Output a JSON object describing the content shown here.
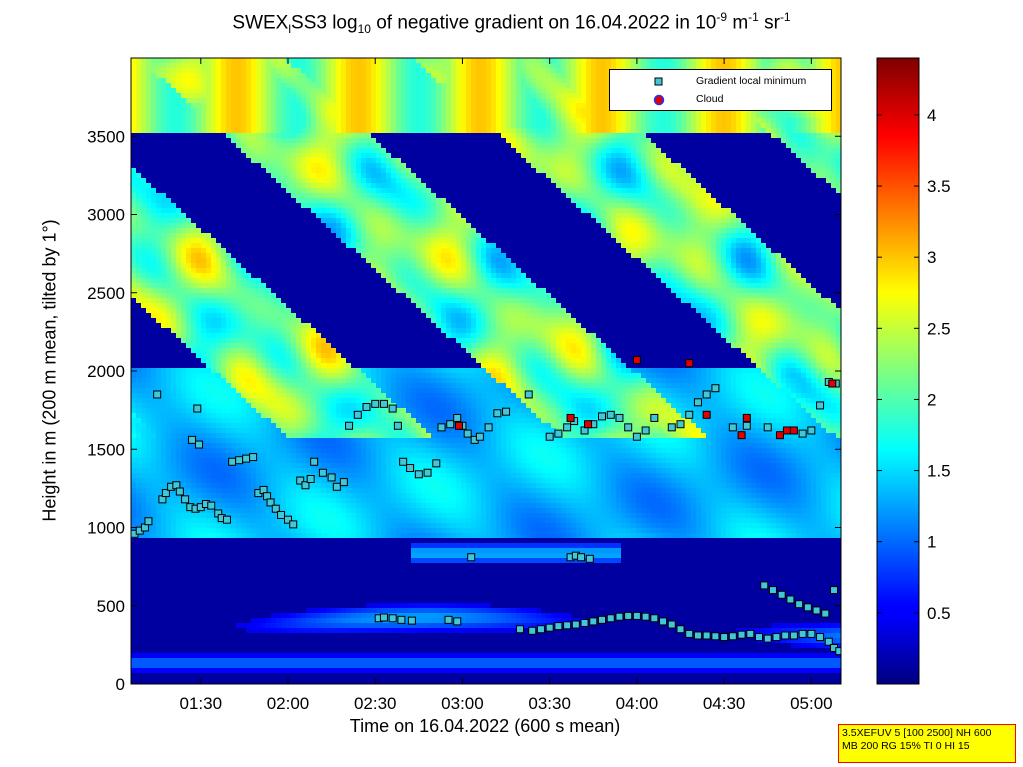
{
  "title": {
    "part1": "SWEX",
    "sub1": "l",
    "part2": "SS3 log",
    "sub2": "10",
    "part3": " of negative gradient on 16.04.2022 in 10",
    "sup1": "-9",
    "part4": " m",
    "sup2": "-1",
    "part5": " sr",
    "sup3": "-1"
  },
  "xlabel": "Time on 16.04.2022 (600 s mean)",
  "ylabel": "Height in m (200 m mean, tilted by 1°)",
  "legend": {
    "items": [
      "Gradient local minimum",
      "Cloud"
    ],
    "position": "top-right"
  },
  "info": {
    "line1": "3.5XEFUV 5 [100 2500] NH 600",
    "line2": "MB 200 RG 15% TI 0 HI 15"
  },
  "colors": {
    "minimum_marker_fill": "#40c8d8",
    "cloud_marker_fill": "#e00000",
    "info_background": "#ffff00",
    "info_border": "#ff0000"
  },
  "chart_data": {
    "type": "heatmap",
    "colormap": "jet",
    "xlim_hours": [
      1.1,
      5.17
    ],
    "ylim": [
      0,
      4000
    ],
    "x_ticks": [
      "01:30",
      "02:00",
      "02:30",
      "03:00",
      "03:30",
      "04:00",
      "04:30",
      "05:00"
    ],
    "y_ticks": [
      "0",
      "500",
      "1000",
      "1500",
      "2000",
      "2500",
      "3000",
      "3500"
    ],
    "colorbar_ticks": [
      "0.5",
      "1",
      "1.5",
      "2",
      "2.5",
      "3",
      "3.5",
      "4"
    ],
    "colorbar_range": [
      0,
      4.4
    ],
    "series": [
      {
        "name": "Gradient local minimum",
        "points": [
          [
            1.12,
            960
          ],
          [
            1.15,
            980
          ],
          [
            1.18,
            1000
          ],
          [
            1.2,
            1040
          ],
          [
            1.25,
            1850
          ],
          [
            1.28,
            1180
          ],
          [
            1.3,
            1220
          ],
          [
            1.33,
            1260
          ],
          [
            1.36,
            1270
          ],
          [
            1.38,
            1230
          ],
          [
            1.41,
            1180
          ],
          [
            1.44,
            1130
          ],
          [
            1.47,
            1120
          ],
          [
            1.5,
            1130
          ],
          [
            1.53,
            1150
          ],
          [
            1.56,
            1140
          ],
          [
            1.45,
            1560
          ],
          [
            1.49,
            1530
          ],
          [
            1.48,
            1760
          ],
          [
            1.6,
            1090
          ],
          [
            1.62,
            1060
          ],
          [
            1.65,
            1050
          ],
          [
            1.68,
            1420
          ],
          [
            1.72,
            1430
          ],
          [
            1.76,
            1440
          ],
          [
            1.8,
            1450
          ],
          [
            1.83,
            1220
          ],
          [
            1.86,
            1240
          ],
          [
            1.88,
            1200
          ],
          [
            1.9,
            1160
          ],
          [
            1.93,
            1120
          ],
          [
            1.96,
            1080
          ],
          [
            2.0,
            1050
          ],
          [
            2.03,
            1020
          ],
          [
            2.07,
            1300
          ],
          [
            2.1,
            1270
          ],
          [
            2.13,
            1310
          ],
          [
            2.15,
            1420
          ],
          [
            2.2,
            1350
          ],
          [
            2.25,
            1320
          ],
          [
            2.28,
            1260
          ],
          [
            2.32,
            1290
          ],
          [
            2.35,
            1650
          ],
          [
            2.4,
            1720
          ],
          [
            2.45,
            1770
          ],
          [
            2.5,
            1790
          ],
          [
            2.55,
            1790
          ],
          [
            2.6,
            1760
          ],
          [
            2.63,
            1650
          ],
          [
            2.66,
            1420
          ],
          [
            2.7,
            1380
          ],
          [
            2.75,
            1340
          ],
          [
            2.8,
            1350
          ],
          [
            2.85,
            1410
          ],
          [
            2.88,
            1640
          ],
          [
            2.93,
            1660
          ],
          [
            2.97,
            1700
          ],
          [
            3.0,
            1650
          ],
          [
            3.03,
            1600
          ],
          [
            3.07,
            1560
          ],
          [
            3.1,
            1580
          ],
          [
            3.15,
            1640
          ],
          [
            3.2,
            1730
          ],
          [
            3.25,
            1740
          ],
          [
            3.05,
            810
          ],
          [
            3.38,
            1850
          ],
          [
            3.5,
            1580
          ],
          [
            3.55,
            1600
          ],
          [
            3.6,
            1640
          ],
          [
            3.64,
            1680
          ],
          [
            3.7,
            1620
          ],
          [
            3.75,
            1660
          ],
          [
            3.8,
            1710
          ],
          [
            3.85,
            1720
          ],
          [
            3.9,
            1700
          ],
          [
            3.95,
            1640
          ],
          [
            4.0,
            1580
          ],
          [
            4.05,
            1620
          ],
          [
            4.1,
            1700
          ],
          [
            4.2,
            1640
          ],
          [
            4.25,
            1660
          ],
          [
            4.3,
            1720
          ],
          [
            4.35,
            1800
          ],
          [
            4.4,
            1850
          ],
          [
            4.45,
            1890
          ],
          [
            4.55,
            1640
          ],
          [
            4.63,
            1650
          ],
          [
            4.75,
            1640
          ],
          [
            4.95,
            1600
          ],
          [
            5.0,
            1620
          ],
          [
            5.05,
            1780
          ],
          [
            5.1,
            1930
          ],
          [
            5.14,
            1920
          ],
          [
            3.62,
            810
          ],
          [
            3.65,
            820
          ],
          [
            3.68,
            810
          ],
          [
            3.73,
            800
          ],
          [
            2.52,
            420
          ],
          [
            2.55,
            425
          ],
          [
            2.6,
            420
          ],
          [
            2.65,
            410
          ],
          [
            2.71,
            405
          ],
          [
            2.92,
            410
          ],
          [
            2.97,
            400
          ],
          [
            3.33,
            350
          ],
          [
            3.4,
            340
          ],
          [
            3.45,
            350
          ],
          [
            3.5,
            360
          ],
          [
            3.55,
            370
          ],
          [
            3.6,
            375
          ],
          [
            3.65,
            380
          ],
          [
            3.7,
            390
          ],
          [
            3.75,
            400
          ],
          [
            3.8,
            410
          ],
          [
            3.85,
            420
          ],
          [
            3.9,
            430
          ],
          [
            3.95,
            435
          ],
          [
            4.0,
            435
          ],
          [
            4.05,
            430
          ],
          [
            4.1,
            420
          ],
          [
            4.15,
            400
          ],
          [
            4.2,
            380
          ],
          [
            4.25,
            350
          ],
          [
            4.3,
            320
          ],
          [
            4.35,
            310
          ],
          [
            4.4,
            310
          ],
          [
            4.45,
            305
          ],
          [
            4.5,
            300
          ],
          [
            4.55,
            305
          ],
          [
            4.6,
            315
          ],
          [
            4.65,
            320
          ],
          [
            4.7,
            300
          ],
          [
            4.75,
            290
          ],
          [
            4.8,
            300
          ],
          [
            4.85,
            310
          ],
          [
            4.9,
            310
          ],
          [
            4.95,
            320
          ],
          [
            5.0,
            320
          ],
          [
            5.05,
            300
          ],
          [
            5.1,
            270
          ],
          [
            5.13,
            230
          ],
          [
            5.16,
            210
          ],
          [
            4.73,
            630
          ],
          [
            4.78,
            600
          ],
          [
            4.83,
            570
          ],
          [
            4.88,
            540
          ],
          [
            4.93,
            510
          ],
          [
            4.98,
            490
          ],
          [
            5.03,
            470
          ],
          [
            5.08,
            450
          ],
          [
            5.13,
            600
          ]
        ]
      },
      {
        "name": "Cloud",
        "points": [
          [
            2.98,
            1650
          ],
          [
            3.62,
            1700
          ],
          [
            3.72,
            1660
          ],
          [
            4.0,
            2070
          ],
          [
            4.3,
            2050
          ],
          [
            4.4,
            1720
          ],
          [
            4.6,
            1590
          ],
          [
            4.63,
            1700
          ],
          [
            4.82,
            1590
          ],
          [
            4.86,
            1620
          ],
          [
            4.9,
            1620
          ],
          [
            5.12,
            1920
          ]
        ]
      }
    ]
  }
}
